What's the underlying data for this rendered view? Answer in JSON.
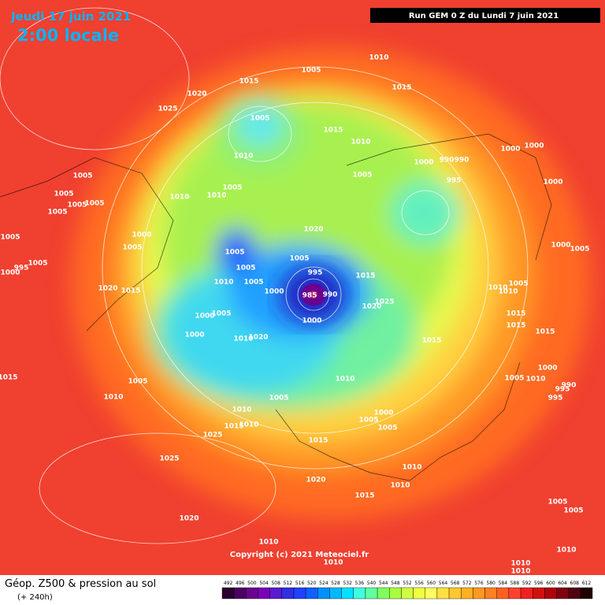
{
  "header": {
    "date": "Jeudi 17 juin 2021",
    "time": "2:00 locale",
    "run": "Run GEM 0 Z du Lundi 7 juin 2021"
  },
  "map": {
    "isobar_labels": [
      1010,
      1005,
      1015,
      1015,
      1020,
      1025,
      1005,
      1015,
      1010,
      1010,
      1000,
      990,
      990,
      1000,
      1000,
      1005,
      995,
      1000,
      1005,
      1005,
      1005,
      1005,
      1005,
      1010,
      1010,
      1005,
      1000,
      1005,
      1020,
      1005,
      1005,
      1005,
      1000,
      1005,
      1005,
      995,
      1000,
      1005,
      995,
      1015,
      1005,
      1010,
      1005,
      1010,
      1010,
      1000,
      985,
      990,
      1020,
      1015,
      1025,
      1020,
      1015,
      1015,
      1015,
      1000,
      1005,
      1000,
      1000,
      1010,
      1020,
      1015,
      1015,
      1005,
      1010,
      1005,
      1010,
      1000,
      995,
      995,
      990,
      1010,
      1005,
      1010,
      1000,
      1005,
      1015,
      1010,
      1005,
      1025,
      1015,
      1010,
      1010,
      1025,
      1020,
      1015,
      1005,
      1005,
      1020,
      1010,
      1010,
      1010,
      1010,
      1010
    ],
    "copyright": "Copyright (c) 2021 Meteociel.fr"
  },
  "footer": {
    "title": "Géop. Z500 & pression au sol",
    "subtitle": "(+ 240h)"
  },
  "color_scale": {
    "values": [
      492,
      496,
      500,
      504,
      508,
      512,
      516,
      520,
      524,
      528,
      532,
      536,
      540,
      544,
      548,
      552,
      556,
      560,
      564,
      568,
      572,
      576,
      580,
      584,
      588,
      592,
      596,
      600,
      604,
      608,
      612
    ],
    "colors": [
      "#2a0030",
      "#4b0060",
      "#6a0090",
      "#7a00b8",
      "#5a1ad0",
      "#3030e0",
      "#2040ff",
      "#1060ff",
      "#0090ff",
      "#00b8ff",
      "#00e0ff",
      "#40ffe0",
      "#60ffa0",
      "#80ff60",
      "#a8ff40",
      "#d0ff40",
      "#f0ff40",
      "#ffff60",
      "#ffe040",
      "#ffc830",
      "#ffb020",
      "#ff9820",
      "#ff8020",
      "#ff6020",
      "#ff4030",
      "#f02020",
      "#d01010",
      "#b00010",
      "#800010",
      "#500010",
      "#200000"
    ]
  }
}
